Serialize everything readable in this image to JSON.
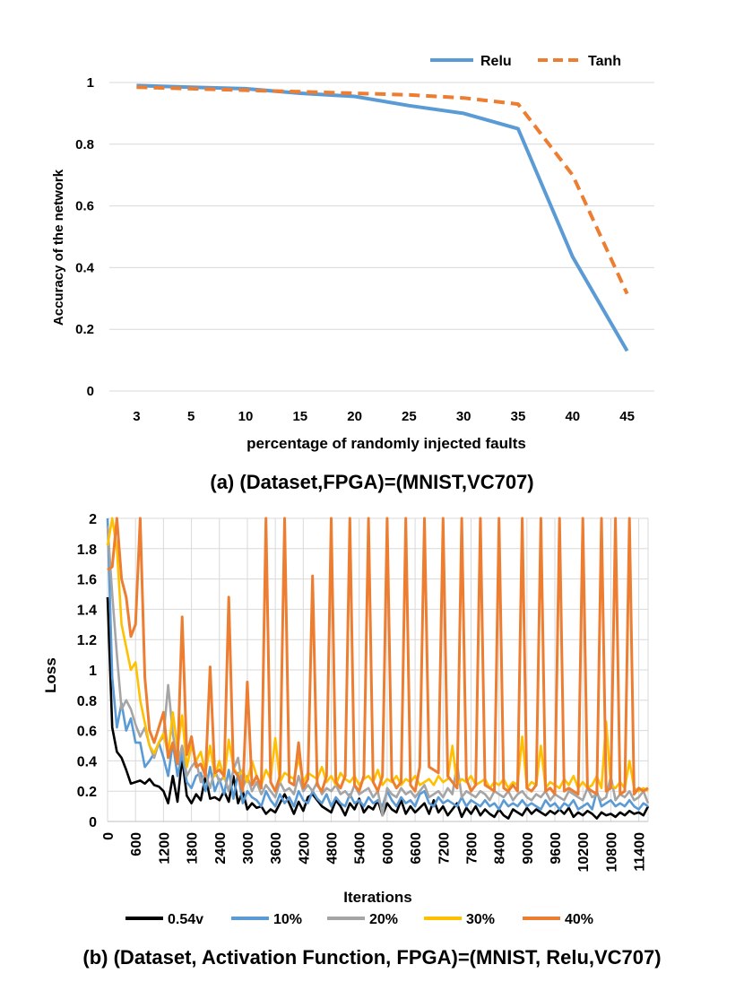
{
  "chart_data": [
    {
      "type": "line",
      "caption": "(a) (Dataset,FPGA)=(MNIST,VC707)",
      "xlabel": "percentage of randomly injected faults",
      "ylabel": "Accuracy of the network",
      "categories": [
        "3",
        "5",
        "10",
        "15",
        "20",
        "25",
        "30",
        "35",
        "40",
        "45"
      ],
      "ylim": [
        0,
        1
      ],
      "yticks": [
        "0",
        "0.2",
        "0.4",
        "0.6",
        "0.8",
        "1"
      ],
      "grid": true,
      "legend_position": "top-right",
      "series": [
        {
          "name": "Relu",
          "color": "#5B9BD5",
          "dashed": false,
          "values": [
            0.99,
            0.985,
            0.98,
            0.965,
            0.955,
            0.925,
            0.9,
            0.85,
            0.435,
            0.13
          ]
        },
        {
          "name": "Tanh",
          "color": "#ED7D31",
          "dashed": true,
          "values": [
            0.985,
            0.98,
            0.975,
            0.97,
            0.965,
            0.96,
            0.95,
            0.93,
            0.7,
            0.315
          ]
        }
      ]
    },
    {
      "type": "line",
      "caption": "(b) (Dataset, Activation Function, FPGA)=(MNIST, Relu,VC707)",
      "xlabel": "Iterations",
      "ylabel": "Loss",
      "xlim": [
        0,
        11600
      ],
      "ylim": [
        0,
        2
      ],
      "xticks": [
        "0",
        "600",
        "1200",
        "1800",
        "2400",
        "3000",
        "3600",
        "4200",
        "4800",
        "5400",
        "6000",
        "6600",
        "7200",
        "7800",
        "8400",
        "9000",
        "9600",
        "10200",
        "10800",
        "11400"
      ],
      "yticks": [
        "0",
        "0.2",
        "0.4",
        "0.6",
        "0.8",
        "1",
        "1.2",
        "1.4",
        "1.6",
        "1.8",
        "2"
      ],
      "grid": true,
      "legend_position": "bottom",
      "series": [
        {
          "name": "0.54v",
          "color": "#000000",
          "x_step": 100,
          "values": [
            1.48,
            0.62,
            0.46,
            0.42,
            0.34,
            0.25,
            0.26,
            0.27,
            0.25,
            0.28,
            0.24,
            0.23,
            0.2,
            0.12,
            0.3,
            0.13,
            0.42,
            0.17,
            0.12,
            0.18,
            0.14,
            0.3,
            0.15,
            0.16,
            0.14,
            0.2,
            0.13,
            0.3,
            0.12,
            0.2,
            0.08,
            0.12,
            0.09,
            0.1,
            0.05,
            0.08,
            0.06,
            0.12,
            0.18,
            0.12,
            0.05,
            0.13,
            0.07,
            0.16,
            0.18,
            0.14,
            0.1,
            0.08,
            0.06,
            0.14,
            0.1,
            0.04,
            0.12,
            0.08,
            0.15,
            0.06,
            0.1,
            0.08,
            0.14,
            0.04,
            0.12,
            0.08,
            0.06,
            0.14,
            0.05,
            0.1,
            0.06,
            0.09,
            0.12,
            0.05,
            0.14,
            0.06,
            0.1,
            0.04,
            0.08,
            0.12,
            0.03,
            0.09,
            0.05,
            0.1,
            0.04,
            0.08,
            0.05,
            0.03,
            0.08,
            0.04,
            0.02,
            0.08,
            0.06,
            0.04,
            0.09,
            0.05,
            0.08,
            0.06,
            0.04,
            0.07,
            0.05,
            0.08,
            0.05,
            0.09,
            0.03,
            0.06,
            0.04,
            0.07,
            0.05,
            0.02,
            0.06,
            0.04,
            0.05,
            0.03,
            0.06,
            0.04,
            0.07,
            0.05,
            0.06,
            0.04,
            0.1
          ]
        },
        {
          "name": "10%",
          "color": "#5B9BD5",
          "x_step": 100,
          "values": [
            2.0,
            0.95,
            0.62,
            0.78,
            0.6,
            0.68,
            0.52,
            0.52,
            0.36,
            0.4,
            0.45,
            0.52,
            0.42,
            0.3,
            0.52,
            0.3,
            0.45,
            0.26,
            0.22,
            0.3,
            0.32,
            0.2,
            0.36,
            0.2,
            0.28,
            0.18,
            0.34,
            0.15,
            0.32,
            0.12,
            0.2,
            0.16,
            0.14,
            0.1,
            0.2,
            0.14,
            0.1,
            0.18,
            0.12,
            0.16,
            0.1,
            0.2,
            0.14,
            0.12,
            0.2,
            0.15,
            0.12,
            0.18,
            0.1,
            0.16,
            0.12,
            0.1,
            0.18,
            0.12,
            0.14,
            0.1,
            0.16,
            0.12,
            0.14,
            0.1,
            0.2,
            0.14,
            0.1,
            0.16,
            0.12,
            0.14,
            0.1,
            0.18,
            0.2,
            0.12,
            0.1,
            0.16,
            0.12,
            0.14,
            0.12,
            0.1,
            0.16,
            0.1,
            0.14,
            0.12,
            0.1,
            0.14,
            0.1,
            0.12,
            0.08,
            0.14,
            0.1,
            0.12,
            0.1,
            0.14,
            0.1,
            0.12,
            0.1,
            0.08,
            0.14,
            0.1,
            0.12,
            0.08,
            0.12,
            0.1,
            0.14,
            0.08,
            0.1,
            0.12,
            0.08,
            0.2,
            0.1,
            0.12,
            0.14,
            0.1,
            0.12,
            0.1,
            0.14,
            0.1,
            0.08,
            0.12,
            0.1
          ]
        },
        {
          "name": "20%",
          "color": "#A5A5A5",
          "x_step": 100,
          "values": [
            1.95,
            1.5,
            1.1,
            0.74,
            0.8,
            0.74,
            0.64,
            0.56,
            0.62,
            0.5,
            0.42,
            0.52,
            0.56,
            0.9,
            0.58,
            0.38,
            0.5,
            0.3,
            0.36,
            0.4,
            0.26,
            0.32,
            0.22,
            0.34,
            0.26,
            0.3,
            0.2,
            0.34,
            0.42,
            0.22,
            0.3,
            0.2,
            0.26,
            0.18,
            0.24,
            0.2,
            0.16,
            0.26,
            0.2,
            0.22,
            0.18,
            0.3,
            0.2,
            0.24,
            0.2,
            0.26,
            0.18,
            0.22,
            0.2,
            0.24,
            0.18,
            0.2,
            0.16,
            0.24,
            0.18,
            0.2,
            0.22,
            0.16,
            0.2,
            0.04,
            0.22,
            0.18,
            0.16,
            0.22,
            0.18,
            0.2,
            0.16,
            0.2,
            0.24,
            0.16,
            0.18,
            0.2,
            0.16,
            0.22,
            0.18,
            0.38,
            0.16,
            0.2,
            0.18,
            0.16,
            0.2,
            0.18,
            0.14,
            0.2,
            0.18,
            0.16,
            0.2,
            0.14,
            0.18,
            0.2,
            0.16,
            0.14,
            0.18,
            0.16,
            0.2,
            0.14,
            0.18,
            0.16,
            0.14,
            0.2,
            0.18,
            0.16,
            0.14,
            0.22,
            0.16,
            0.18,
            0.14,
            0.16,
            0.3,
            0.14,
            0.18,
            0.16,
            0.2,
            0.14,
            0.16,
            0.2,
            0.12
          ]
        },
        {
          "name": "30%",
          "color": "#FFC000",
          "x_step": 100,
          "values": [
            1.82,
            2.0,
            1.8,
            1.3,
            1.15,
            1.0,
            1.05,
            0.8,
            0.65,
            0.5,
            0.45,
            0.52,
            0.58,
            0.44,
            0.72,
            0.48,
            0.7,
            0.36,
            0.5,
            0.4,
            0.46,
            0.32,
            0.5,
            0.3,
            0.4,
            0.28,
            0.54,
            0.36,
            0.3,
            0.34,
            0.26,
            0.4,
            0.3,
            0.24,
            0.34,
            0.28,
            0.55,
            0.26,
            0.32,
            0.3,
            0.28,
            0.42,
            0.26,
            0.32,
            0.3,
            0.28,
            0.36,
            0.26,
            0.3,
            0.24,
            0.32,
            0.28,
            0.26,
            0.3,
            0.24,
            0.28,
            0.3,
            0.26,
            0.34,
            0.24,
            0.28,
            0.26,
            0.3,
            0.24,
            0.28,
            0.26,
            0.3,
            0.24,
            0.26,
            0.28,
            0.24,
            0.3,
            0.26,
            0.28,
            0.5,
            0.24,
            0.28,
            0.26,
            0.3,
            0.24,
            0.26,
            0.28,
            0.22,
            0.26,
            0.24,
            0.28,
            0.22,
            0.26,
            0.24,
            0.56,
            0.22,
            0.26,
            0.24,
            0.5,
            0.22,
            0.26,
            0.24,
            0.22,
            0.28,
            0.24,
            0.3,
            0.22,
            0.26,
            0.22,
            0.24,
            0.3,
            0.22,
            0.66,
            0.24,
            0.22,
            0.26,
            0.22,
            0.4,
            0.22,
            0.2,
            0.22,
            0.2
          ]
        },
        {
          "name": "40%",
          "color": "#ED7D31",
          "x_step": 100,
          "values": [
            1.66,
            1.68,
            2.0,
            1.6,
            1.48,
            1.22,
            1.3,
            2.0,
            0.95,
            0.6,
            0.52,
            0.62,
            0.72,
            0.42,
            0.52,
            0.38,
            1.35,
            0.44,
            0.56,
            0.36,
            0.38,
            0.3,
            1.02,
            0.32,
            0.34,
            0.3,
            1.48,
            0.34,
            0.3,
            0.2,
            0.92,
            0.24,
            0.3,
            0.22,
            2.0,
            0.26,
            0.2,
            0.3,
            2.0,
            0.26,
            0.24,
            0.52,
            0.22,
            0.28,
            1.62,
            0.24,
            0.2,
            0.3,
            2.0,
            0.26,
            0.22,
            0.3,
            2.0,
            0.24,
            0.2,
            0.3,
            2.0,
            0.26,
            0.2,
            0.3,
            2.0,
            0.28,
            0.22,
            0.26,
            2.0,
            0.24,
            0.2,
            0.36,
            2.0,
            0.36,
            0.34,
            0.32,
            2.0,
            0.3,
            0.26,
            0.22,
            2.0,
            0.28,
            0.2,
            0.24,
            2.0,
            0.24,
            0.22,
            0.2,
            2.0,
            0.22,
            0.2,
            0.24,
            0.2,
            2.0,
            0.22,
            0.2,
            0.24,
            2.0,
            0.2,
            0.22,
            0.18,
            2.0,
            0.2,
            0.22,
            0.2,
            0.18,
            2.0,
            0.22,
            0.2,
            0.18,
            2.0,
            0.2,
            0.22,
            2.0,
            0.18,
            0.2,
            2.0,
            0.18,
            0.22,
            0.2,
            0.22
          ]
        }
      ]
    }
  ]
}
